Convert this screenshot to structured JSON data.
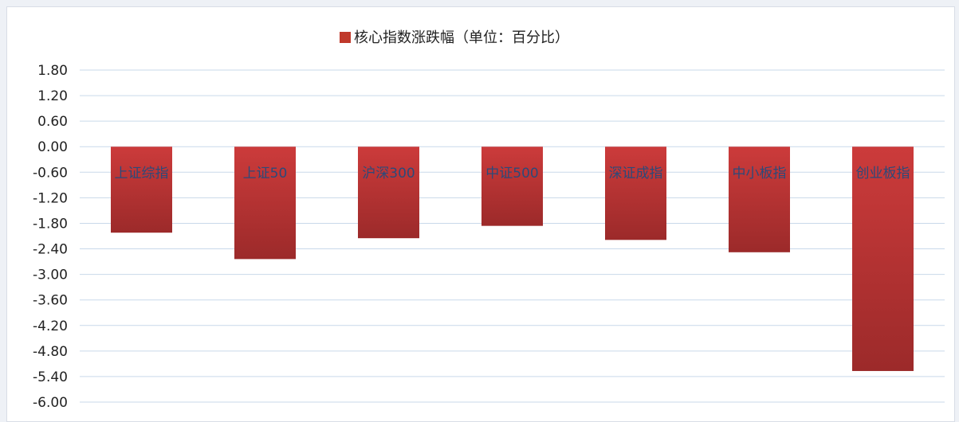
{
  "chart_data": {
    "type": "bar",
    "legend": "核心指数涨跌幅（单位：百分比）",
    "legend_position": "top",
    "categories": [
      "上证综指",
      "上证50",
      "沪深300",
      "中证500",
      "深证成指",
      "中小板指",
      "创业板指"
    ],
    "series": [
      {
        "name": "核心指数涨跌幅（单位：百分比）",
        "values": [
          -2.02,
          -2.64,
          -2.15,
          -1.86,
          -2.19,
          -2.48,
          -5.27
        ]
      }
    ],
    "y_ticks": [
      "1.80",
      "1.20",
      "0.60",
      "0.00",
      "-0.60",
      "-1.20",
      "-1.80",
      "-2.40",
      "-3.00",
      "-3.60",
      "-4.20",
      "-4.80",
      "-5.40",
      "-6.00"
    ],
    "ylim": [
      -6.0,
      1.8
    ],
    "grid": true,
    "colors": {
      "bar_top": "#cc3b3b",
      "bar_bottom": "#9c2a2a",
      "grid": "#c9d9ea",
      "legend_swatch": "#c0392b"
    }
  }
}
